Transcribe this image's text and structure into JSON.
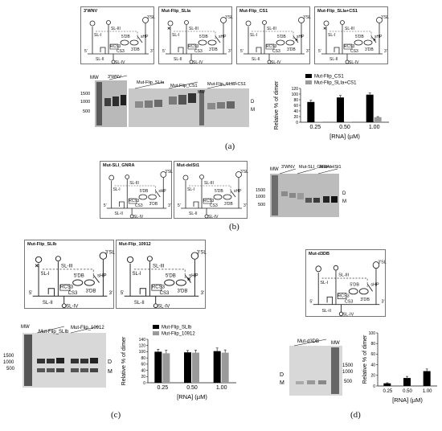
{
  "panels": {
    "a": {
      "label": "(a)",
      "structures": [
        {
          "title": "3'WNV",
          "x": 0
        },
        {
          "title": "Mut-Flip_SLIa",
          "x": 0
        },
        {
          "title": "Mut-Flip_CS1",
          "x": 0
        },
        {
          "title": "Mut-Flip_SLIa+CS1",
          "x": 0
        }
      ],
      "gel1": {
        "mw": "MW",
        "lanes_label": "3'WNV",
        "ticks": [
          "1500",
          "1000",
          "500"
        ],
        "bands": [
          "D",
          "M"
        ]
      },
      "gel2": {
        "lane_labels": [
          "Mut-Flip_SLIa",
          "Mut-Flip_CS1",
          "MW",
          "Mut-Flip_SLIa+CS1"
        ],
        "bands": [
          "D",
          "M"
        ]
      }
    },
    "b": {
      "label": "(b)",
      "structures": [
        {
          "title": "Mut-SLI_GNRA"
        },
        {
          "title": "Mut-delSt1"
        }
      ],
      "gel": {
        "mw": "MW",
        "lane_labels": [
          "3'WNV",
          "Mut-SLI_GNRA",
          "Mut-delSt1"
        ],
        "ticks": [
          "1500",
          "1000",
          "500"
        ],
        "bands": [
          "D",
          "M"
        ]
      }
    },
    "c": {
      "label": "(c)",
      "structures": [
        {
          "title": "Mut-Flip_SLIb"
        },
        {
          "title": "Mut-Flip_10912"
        }
      ],
      "gel": {
        "mw": "MW",
        "lane_labels": [
          "Mut-Flip_SLIb",
          "Mut-Flip_10912"
        ],
        "ticks": [
          "1500",
          "1000",
          "500"
        ],
        "bands": [
          "D",
          "M"
        ]
      }
    },
    "d": {
      "label": "(d)",
      "structures": [
        {
          "title": "Mut-d3DB"
        }
      ],
      "gel": {
        "mw": "MW",
        "lane_labels": [
          "Mut-d3DB"
        ],
        "ticks": [
          "1500",
          "1000",
          "500"
        ],
        "bands": [
          "D",
          "M"
        ]
      }
    }
  },
  "structure_labels": {
    "sl_i": "SL-I",
    "sl_ii": "SL-II",
    "sl_iii": "SL-III",
    "sl_iv": "SL-IV",
    "db5": "5'DB",
    "db3": "3'DB",
    "rcs3": "RCS3",
    "cs3": "CS3",
    "shp": "sHP",
    "sl3": "3'SL",
    "p5": "5'",
    "p3": "3'"
  },
  "chart_data": [
    {
      "id": "chart-a",
      "type": "bar",
      "categories": [
        "0.25",
        "0.50",
        "1.00"
      ],
      "series": [
        {
          "name": "Mut-Flip_CS1",
          "values": [
            72,
            88,
            98
          ],
          "errors": [
            6,
            7,
            6
          ],
          "color": "#000000"
        },
        {
          "name": "Mut-Flip_SLIa+CS1",
          "values": [
            1,
            1,
            18
          ],
          "errors": [
            0,
            0,
            2
          ],
          "color": "#9a9a9a"
        }
      ],
      "xlabel": "[RNA] (µM)",
      "ylabel": "Relative % of dimer",
      "ylim": [
        0,
        120
      ],
      "yticks": [
        "0",
        "20",
        "40",
        "60",
        "80",
        "100",
        "120"
      ],
      "legend": "top-left"
    },
    {
      "id": "chart-c",
      "type": "bar",
      "categories": [
        "0.25",
        "0.50",
        "1.00"
      ],
      "series": [
        {
          "name": "Mut-Flip_SLIb",
          "values": [
            100,
            98,
            102
          ],
          "errors": [
            8,
            6,
            10
          ],
          "color": "#000000"
        },
        {
          "name": "Mut-Flip_10912",
          "values": [
            95,
            97,
            97
          ],
          "errors": [
            10,
            8,
            9
          ],
          "color": "#9a9a9a"
        }
      ],
      "xlabel": "[RNA] (µM)",
      "ylabel": "Relative % of dimer",
      "ylim": [
        0,
        140
      ],
      "yticks": [
        "0",
        "20",
        "40",
        "60",
        "80",
        "100",
        "120",
        "140"
      ],
      "legend": "top"
    },
    {
      "id": "chart-d",
      "type": "bar",
      "categories": [
        "0.25",
        "0.50",
        "1.00"
      ],
      "series": [
        {
          "name": "",
          "values": [
            5,
            15,
            28
          ],
          "errors": [
            1,
            3,
            4
          ],
          "color": "#000000"
        }
      ],
      "xlabel": "[RNA] (µM)",
      "ylabel": "Relative % of dimer",
      "ylim": [
        0,
        100
      ],
      "yticks": [
        "0",
        "20",
        "40",
        "60",
        "80",
        "100"
      ],
      "legend": "none"
    }
  ]
}
